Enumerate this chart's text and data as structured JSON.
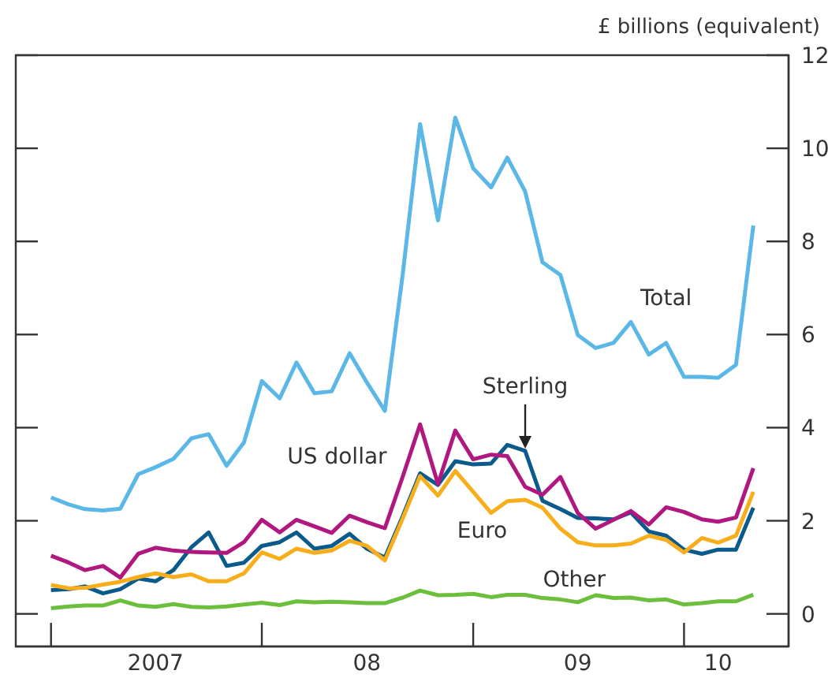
{
  "chart_data": {
    "type": "line",
    "ylabel": "£ billions (equivalent)",
    "x": [
      "2007-01",
      "2007-02",
      "2007-03",
      "2007-04",
      "2007-05",
      "2007-06",
      "2007-07",
      "2007-08",
      "2007-09",
      "2007-10",
      "2007-11",
      "2007-12",
      "2008-01",
      "2008-02",
      "2008-03",
      "2008-04",
      "2008-05",
      "2008-06",
      "2008-07",
      "2008-08",
      "2008-09",
      "2008-10",
      "2008-11",
      "2008-12",
      "2009-01",
      "2009-02",
      "2009-03",
      "2009-04",
      "2009-05",
      "2009-06",
      "2009-07",
      "2009-08",
      "2009-09",
      "2009-10",
      "2009-11",
      "2009-12",
      "2010-01",
      "2010-02",
      "2010-03",
      "2010-04",
      "2010-05"
    ],
    "series": [
      {
        "name": "Total",
        "color": "#5bb8e6",
        "values": [
          2.5,
          2.35,
          2.25,
          2.22,
          2.26,
          3.0,
          3.15,
          3.33,
          3.77,
          3.86,
          3.18,
          3.68,
          5.0,
          4.63,
          5.4,
          4.74,
          4.78,
          5.6,
          4.97,
          4.36,
          7.3,
          10.52,
          8.45,
          10.66,
          9.57,
          9.16,
          9.8,
          9.07,
          7.55,
          7.28,
          5.99,
          5.71,
          5.82,
          6.27,
          5.57,
          5.82,
          5.09,
          5.09,
          5.07,
          5.35,
          8.34
        ]
      },
      {
        "name": "Sterling",
        "color": "#0a5a8c",
        "values": [
          0.51,
          0.53,
          0.59,
          0.44,
          0.53,
          0.76,
          0.7,
          0.94,
          1.43,
          1.75,
          1.03,
          1.1,
          1.46,
          1.54,
          1.75,
          1.4,
          1.46,
          1.72,
          1.4,
          1.21,
          2.1,
          3.02,
          2.77,
          3.28,
          3.21,
          3.23,
          3.63,
          3.5,
          2.43,
          2.25,
          2.06,
          2.05,
          2.03,
          2.18,
          1.77,
          1.68,
          1.38,
          1.29,
          1.38,
          1.38,
          2.28
        ]
      },
      {
        "name": "US dollar",
        "color": "#b0177f",
        "values": [
          1.25,
          1.1,
          0.94,
          1.03,
          0.78,
          1.29,
          1.42,
          1.36,
          1.33,
          1.32,
          1.31,
          1.54,
          2.02,
          1.75,
          2.02,
          1.88,
          1.74,
          2.11,
          1.97,
          1.84,
          2.95,
          4.07,
          2.79,
          3.94,
          3.32,
          3.42,
          3.39,
          2.73,
          2.56,
          2.94,
          2.17,
          1.83,
          2.02,
          2.21,
          1.92,
          2.29,
          2.19,
          2.03,
          1.98,
          2.07,
          3.13
        ]
      },
      {
        "name": "Euro",
        "color": "#f8ad1a",
        "values": [
          0.62,
          0.55,
          0.56,
          0.63,
          0.69,
          0.79,
          0.87,
          0.79,
          0.85,
          0.7,
          0.7,
          0.87,
          1.32,
          1.18,
          1.4,
          1.31,
          1.36,
          1.57,
          1.46,
          1.15,
          2.05,
          2.96,
          2.54,
          3.07,
          2.62,
          2.17,
          2.42,
          2.45,
          2.28,
          1.83,
          1.54,
          1.47,
          1.47,
          1.51,
          1.68,
          1.59,
          1.32,
          1.63,
          1.53,
          1.68,
          2.62
        ]
      },
      {
        "name": "Other",
        "color": "#6cbf3c",
        "values": [
          0.12,
          0.16,
          0.18,
          0.18,
          0.29,
          0.18,
          0.15,
          0.21,
          0.15,
          0.14,
          0.16,
          0.2,
          0.24,
          0.19,
          0.27,
          0.25,
          0.26,
          0.25,
          0.23,
          0.23,
          0.35,
          0.5,
          0.4,
          0.41,
          0.43,
          0.36,
          0.41,
          0.41,
          0.34,
          0.31,
          0.25,
          0.4,
          0.34,
          0.35,
          0.29,
          0.31,
          0.2,
          0.23,
          0.27,
          0.27,
          0.41
        ]
      }
    ],
    "xlim": [
      "2006-11",
      "2010-07"
    ],
    "xticks": [
      {
        "value": "2007-01",
        "label": null
      },
      {
        "value": "2007-07",
        "label": "2007"
      },
      {
        "value": "2008-01",
        "label": null
      },
      {
        "value": "2008-07",
        "label": "08"
      },
      {
        "value": "2009-01",
        "label": null
      },
      {
        "value": "2009-07",
        "label": "09"
      },
      {
        "value": "2010-01",
        "label": null
      },
      {
        "value": "2010-03",
        "label": "10"
      }
    ],
    "ylim": [
      -0.7,
      12
    ],
    "yticks": [
      0,
      2,
      4,
      6,
      8,
      10,
      12
    ],
    "marker": "none",
    "line_style": "solid"
  }
}
